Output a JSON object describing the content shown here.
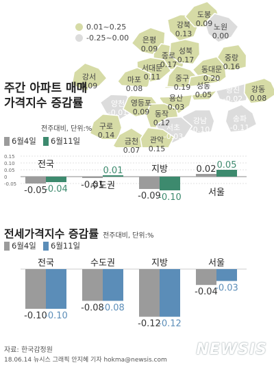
{
  "map": {
    "legend": [
      {
        "label": "0.01~0.25",
        "color": "#d6dba6"
      },
      {
        "label": "-0.25~0.00",
        "color": "#dcdcdc"
      }
    ],
    "districts": [
      {
        "name": "강북",
        "value": "0.13",
        "color": "#d6dba6"
      },
      {
        "name": "도봉",
        "value": "0.09",
        "color": "#d6dba6"
      },
      {
        "name": "노원",
        "value": "0.00",
        "color": "#dcdcdc"
      },
      {
        "name": "은평",
        "value": "0.09",
        "color": "#d6dba6"
      },
      {
        "name": "종로",
        "value": "0.17",
        "color": "#d6dba6"
      },
      {
        "name": "성북",
        "value": "0.17",
        "color": "#d6dba6"
      },
      {
        "name": "중랑",
        "value": "0.16",
        "color": "#d6dba6"
      },
      {
        "name": "서대문",
        "value": "0.11",
        "color": "#d6dba6"
      },
      {
        "name": "동대문",
        "value": "0.20",
        "color": "#d6dba6"
      },
      {
        "name": "강서",
        "value": "0.09",
        "color": "#d6dba6"
      },
      {
        "name": "마포",
        "value": "0.08",
        "color": "#d6dba6"
      },
      {
        "name": "중구",
        "value": "0.19",
        "color": "#d6dba6"
      },
      {
        "name": "성동",
        "value": "0.05",
        "color": "#d6dba6"
      },
      {
        "name": "광진",
        "value": "-0.02",
        "color": "#dcdcdc"
      },
      {
        "name": "강동",
        "value": "0.08",
        "color": "#d6dba6"
      },
      {
        "name": "양천",
        "value": "-0.01",
        "color": "#dcdcdc"
      },
      {
        "name": "영등포",
        "value": "0.09",
        "color": "#d6dba6"
      },
      {
        "name": "용산",
        "value": "0.03",
        "color": "#d6dba6"
      },
      {
        "name": "구로",
        "value": "0.14",
        "color": "#d6dba6"
      },
      {
        "name": "동작",
        "value": "0.12",
        "color": "#d6dba6"
      },
      {
        "name": "강남",
        "value": "-0.10",
        "color": "#dcdcdc"
      },
      {
        "name": "송파",
        "value": "-0.11",
        "color": "#dcdcdc"
      },
      {
        "name": "서초",
        "value": "-0.03",
        "color": "#dcdcdc"
      },
      {
        "name": "금천",
        "value": "0.07",
        "color": "#d6dba6"
      },
      {
        "name": "관악",
        "value": "0.15",
        "color": "#d6dba6"
      }
    ]
  },
  "chart_data": [
    {
      "type": "bar",
      "title": "주간 아파트 매매가격지수 증감률",
      "note": "전주대비, 단위:%",
      "categories": [
        "전국",
        "수도권",
        "지방",
        "서울"
      ],
      "series": [
        {
          "name": "6월4일",
          "values": [
            -0.05,
            -0.01,
            -0.09,
            0.02
          ],
          "labels": [
            "-0.05",
            "-0.01",
            "-0.09",
            "0.02"
          ],
          "color": "#9b9b9b"
        },
        {
          "name": "6월11일",
          "values": [
            -0.04,
            0.01,
            -0.1,
            0.05
          ],
          "labels": [
            "-0.04",
            "0.01",
            "-0.10",
            "0.05"
          ],
          "color": "#3d8a6e"
        }
      ],
      "yticks": [
        "0.15",
        "0.10",
        "0.05",
        "0",
        "-0.05"
      ],
      "ylim": [
        -0.1,
        0.15
      ]
    },
    {
      "type": "bar",
      "title": "전세가격지수 증감률",
      "note": "전주대비, 단위:%",
      "categories": [
        "전국",
        "수도권",
        "지방",
        "서울"
      ],
      "series": [
        {
          "name": "6월4일",
          "values": [
            -0.1,
            -0.08,
            -0.12,
            -0.04
          ],
          "labels": [
            "-0.10",
            "-0.08",
            "-0.12",
            "-0.04"
          ],
          "color": "#9b9b9b"
        },
        {
          "name": "6월11일",
          "values": [
            -0.1,
            -0.08,
            -0.12,
            -0.03
          ],
          "labels": [
            "-0.10",
            "-0.08",
            "-0.12",
            "-0.03"
          ],
          "color": "#5b8db8"
        }
      ],
      "ylim": [
        -0.12,
        0
      ]
    }
  ],
  "footer": {
    "source": "자료: 한국감정원",
    "credit": "18.06.14 뉴시스 그래픽 안지혜 기자 hokma@newsis.com",
    "watermark": "NEWSIS"
  }
}
